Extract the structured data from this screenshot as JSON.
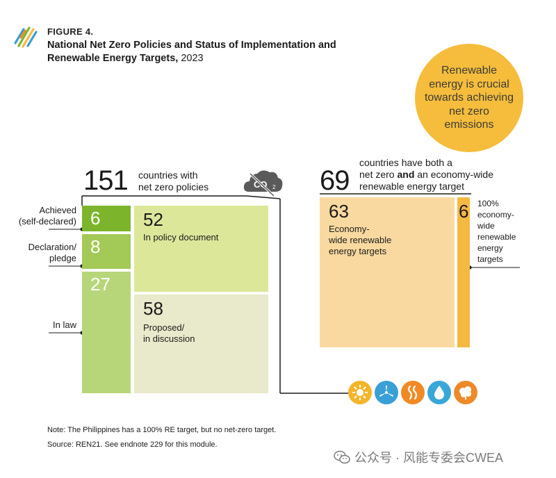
{
  "header": {
    "figure_label": "FIGURE 4.",
    "title_bold": "National Net Zero Policies and Status of Implementation and Renewable Energy Targets,",
    "title_year": " 2023",
    "logo_icon": "renewables-stripes-logo-icon"
  },
  "callout": {
    "text": "Renewable energy is crucial towards achieving net zero emissions",
    "color": "#f6bd3c"
  },
  "left_panel": {
    "total": "151",
    "total_desc_line1": "countries with",
    "total_desc_line2": "net zero policies",
    "co2_icon": "co2-cloud-icon",
    "co2_sub": "2"
  },
  "right_panel": {
    "total": "69",
    "desc_line1": "countries have both a",
    "desc_line2_pre": "net zero ",
    "desc_line2_bold": "and",
    "desc_line2_post": " an economy-wide",
    "desc_line3": "renewable energy target"
  },
  "chart_data": {
    "type": "treemap",
    "groups": [
      {
        "name": "",
        "total": 151,
        "cells": [
          {
            "label_lines": [
              "Achieved",
              "(self-declared)"
            ],
            "value": 6,
            "color": "#7cb52b"
          },
          {
            "label_lines": [
              "Declaration/",
              "pledge"
            ],
            "value": 8,
            "color": "#a3c957"
          },
          {
            "label_lines": [
              "In law"
            ],
            "value": 27,
            "color": "#b7d67a"
          },
          {
            "label_lines": [
              "In policy document"
            ],
            "value": 52,
            "color": "#dde79a"
          },
          {
            "label_lines": [
              "Proposed/",
              "in discussion"
            ],
            "value": 58,
            "color": "#e9e9cb"
          }
        ]
      },
      {
        "name": "",
        "total": 69,
        "cells": [
          {
            "label_lines": [
              "Economy-",
              "wide renewable",
              "energy targets"
            ],
            "value": 63,
            "color": "#fad9a0"
          },
          {
            "label_lines": [
              "100%",
              "economy-",
              "wide",
              "renewable",
              "energy",
              "targets"
            ],
            "value": 6,
            "color": "#f4b941"
          }
        ]
      }
    ]
  },
  "energy_icons": [
    {
      "name": "sun-icon",
      "color": "#f3b52a"
    },
    {
      "name": "wind-turbine-icon",
      "color": "#3a9fd6"
    },
    {
      "name": "heat-waves-icon",
      "color": "#f08a24"
    },
    {
      "name": "water-drop-icon",
      "color": "#3aa7d9"
    },
    {
      "name": "biomass-tree-icon",
      "color": "#ec8a2a"
    }
  ],
  "notes": {
    "note": "Note: The Philippines has a 100% RE target, but no net-zero target.",
    "source": "Source: REN21. See endnote 229 for this module."
  },
  "watermark": {
    "text": "公众号 · 风能专委会CWEA",
    "icon": "wechat-icon"
  }
}
